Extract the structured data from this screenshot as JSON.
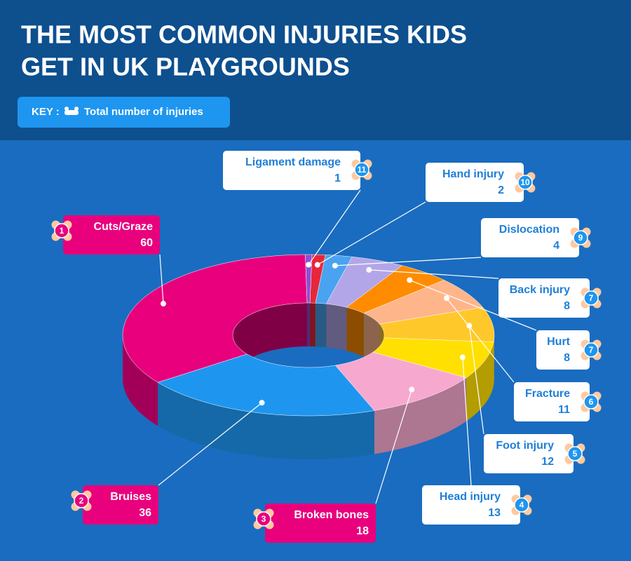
{
  "chart_data": {
    "type": "donut3d",
    "title": "THE MOST COMMON INJURIES KIDS GET IN UK PLAYGROUNDS",
    "key_prefix": "KEY :",
    "key_label": "Total number of injuries",
    "categories": [
      "Cuts/Graze",
      "Bruises",
      "Broken bones",
      "Head injury",
      "Foot injury",
      "Fracture",
      "Hurt",
      "Back injury",
      "Dislocation",
      "Hand injury",
      "Ligament damage"
    ],
    "values": [
      60,
      36,
      18,
      13,
      12,
      11,
      8,
      8,
      4,
      2,
      1
    ],
    "ranks": [
      "1",
      "2",
      "3",
      "4",
      "5",
      "6",
      "7",
      "7",
      "9",
      "10",
      "11"
    ],
    "colors": [
      "#e8007d",
      "#1e96f0",
      "#f7a8cf",
      "#ffe000",
      "#ffc82a",
      "#ffb58a",
      "#ff8c00",
      "#b3a6e8",
      "#4aa3f0",
      "#e8263a",
      "#8e4fd6"
    ]
  }
}
